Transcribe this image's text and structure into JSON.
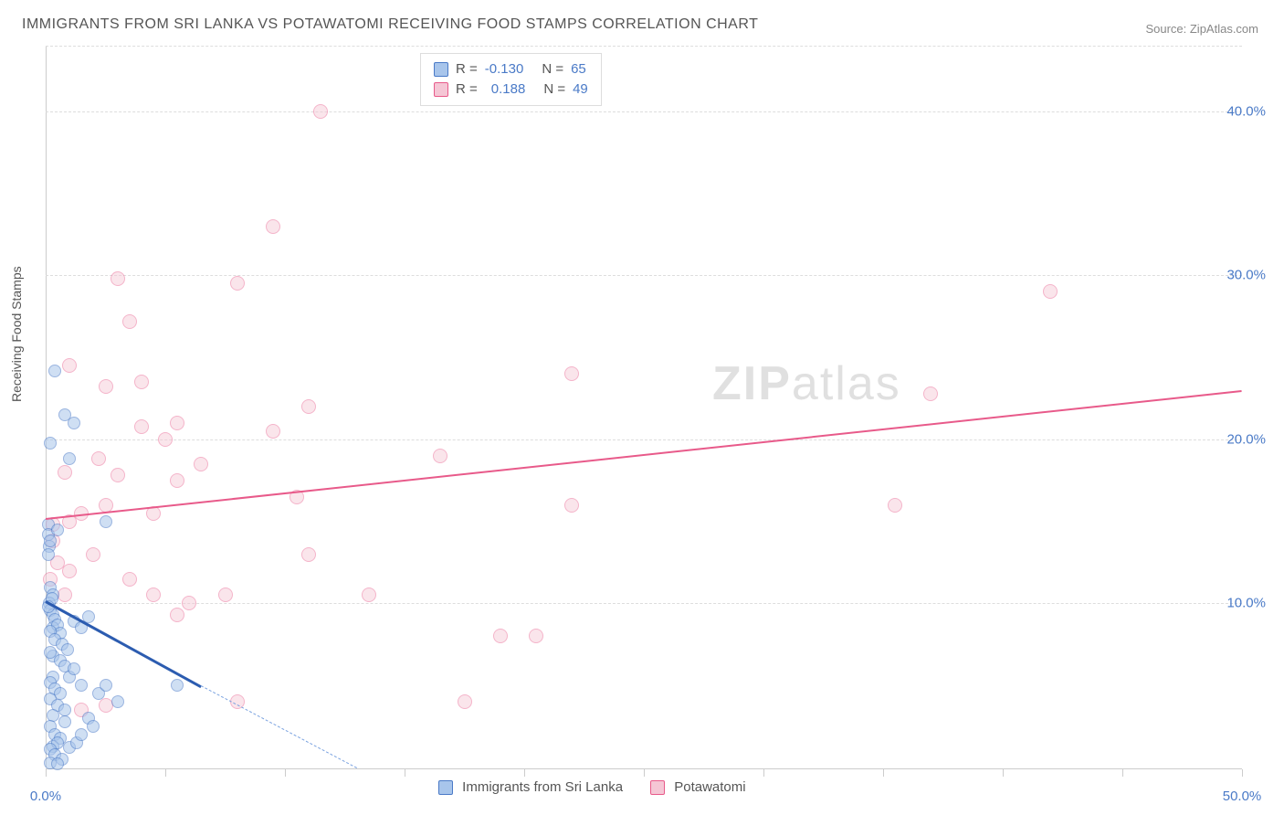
{
  "title": "IMMIGRANTS FROM SRI LANKA VS POTAWATOMI RECEIVING FOOD STAMPS CORRELATION CHART",
  "source_label": "Source: ",
  "source_value": "ZipAtlas.com",
  "watermark": {
    "bold": "ZIP",
    "rest": "atlas"
  },
  "y_axis_label": "Receiving Food Stamps",
  "chart": {
    "type": "scatter",
    "background_color": "#ffffff",
    "grid_color": "#dddddd",
    "axis_color": "#cccccc",
    "tick_label_color": "#4a7ac7",
    "axis_label_color": "#555555",
    "xlim": [
      0,
      50
    ],
    "ylim": [
      0,
      44
    ],
    "xtick_positions": [
      0,
      5,
      10,
      15,
      20,
      25,
      30,
      35,
      40,
      45,
      50
    ],
    "xtick_labels": {
      "0": "0.0%",
      "50": "50.0%"
    },
    "ytick_positions": [
      10,
      20,
      30,
      40
    ],
    "ytick_labels": {
      "10": "10.0%",
      "20": "20.0%",
      "30": "30.0%",
      "40": "40.0%"
    },
    "tick_fontsize": 15,
    "title_fontsize": 16
  },
  "series": {
    "blue": {
      "name": "Immigrants from Sri Lanka",
      "fill": "#a8c5eb",
      "stroke": "#4a7ac7",
      "trend_color": "#2c5cb0",
      "dash_color": "#7ba3e0",
      "marker_size": 14,
      "fill_opacity": 0.55,
      "R": "-0.130",
      "N": "65",
      "trend": {
        "x1": 0,
        "y1": 10.2,
        "x2": 6.5,
        "y2": 5.0
      },
      "trend_dash": {
        "x1": 6.5,
        "y1": 5.0,
        "x2": 13,
        "y2": 0
      },
      "points": [
        [
          0.1,
          14.8
        ],
        [
          0.4,
          24.2
        ],
        [
          0.1,
          14.2
        ],
        [
          0.15,
          13.5
        ],
        [
          0.1,
          13.0
        ],
        [
          0.8,
          21.5
        ],
        [
          1.2,
          21.0
        ],
        [
          0.2,
          19.8
        ],
        [
          1.0,
          18.8
        ],
        [
          0.2,
          13.8
        ],
        [
          0.5,
          14.5
        ],
        [
          2.5,
          15.0
        ],
        [
          3.0,
          4.0
        ],
        [
          5.5,
          5.0
        ],
        [
          0.2,
          11.0
        ],
        [
          0.3,
          10.5
        ],
        [
          0.15,
          10.0
        ],
        [
          0.25,
          10.3
        ],
        [
          0.2,
          9.6
        ],
        [
          0.3,
          9.3
        ],
        [
          0.1,
          9.8
        ],
        [
          0.4,
          9.0
        ],
        [
          0.3,
          8.5
        ],
        [
          0.5,
          8.7
        ],
        [
          0.6,
          8.2
        ],
        [
          0.2,
          8.3
        ],
        [
          0.4,
          7.8
        ],
        [
          0.7,
          7.5
        ],
        [
          0.9,
          7.2
        ],
        [
          0.3,
          6.8
        ],
        [
          0.2,
          7.0
        ],
        [
          0.6,
          6.5
        ],
        [
          0.8,
          6.2
        ],
        [
          1.2,
          8.9
        ],
        [
          1.5,
          8.5
        ],
        [
          1.8,
          9.2
        ],
        [
          0.3,
          5.5
        ],
        [
          0.2,
          5.2
        ],
        [
          0.4,
          4.8
        ],
        [
          0.6,
          4.5
        ],
        [
          0.2,
          4.2
        ],
        [
          0.5,
          3.8
        ],
        [
          0.3,
          3.2
        ],
        [
          0.8,
          2.8
        ],
        [
          0.2,
          2.5
        ],
        [
          0.4,
          2.0
        ],
        [
          0.6,
          1.8
        ],
        [
          0.3,
          1.3
        ],
        [
          0.5,
          1.5
        ],
        [
          0.2,
          1.1
        ],
        [
          0.4,
          0.8
        ],
        [
          0.7,
          0.5
        ],
        [
          1.0,
          1.2
        ],
        [
          1.3,
          1.5
        ],
        [
          1.5,
          2.0
        ],
        [
          1.8,
          3.0
        ],
        [
          2.0,
          2.5
        ],
        [
          2.2,
          4.5
        ],
        [
          2.5,
          5.0
        ],
        [
          1.0,
          5.5
        ],
        [
          1.2,
          6.0
        ],
        [
          1.5,
          5.0
        ],
        [
          0.8,
          3.5
        ],
        [
          0.2,
          0.3
        ],
        [
          0.5,
          0.2
        ]
      ]
    },
    "pink": {
      "name": "Potawatomi",
      "fill": "#f5c6d5",
      "stroke": "#e85a8a",
      "trend_color": "#e85a8a",
      "marker_size": 16,
      "fill_opacity": 0.45,
      "R": "0.188",
      "N": "49",
      "trend": {
        "x1": 0,
        "y1": 15.2,
        "x2": 50,
        "y2": 23.0
      },
      "points": [
        [
          11.5,
          40.0
        ],
        [
          3.0,
          29.8
        ],
        [
          8.0,
          29.5
        ],
        [
          3.5,
          27.2
        ],
        [
          1.0,
          24.5
        ],
        [
          9.5,
          33.0
        ],
        [
          22.0,
          24.0
        ],
        [
          37.0,
          22.8
        ],
        [
          42.0,
          29.0
        ],
        [
          35.5,
          16.0
        ],
        [
          4.0,
          23.5
        ],
        [
          2.5,
          23.2
        ],
        [
          11.0,
          22.0
        ],
        [
          9.5,
          20.5
        ],
        [
          5.5,
          21.0
        ],
        [
          4.0,
          20.8
        ],
        [
          5.0,
          20.0
        ],
        [
          6.5,
          18.5
        ],
        [
          5.5,
          17.5
        ],
        [
          3.0,
          17.8
        ],
        [
          2.2,
          18.8
        ],
        [
          0.8,
          18.0
        ],
        [
          16.5,
          19.0
        ],
        [
          22.0,
          16.0
        ],
        [
          20.5,
          8.0
        ],
        [
          0.3,
          14.8
        ],
        [
          1.5,
          15.5
        ],
        [
          2.5,
          16.0
        ],
        [
          1.0,
          15.0
        ],
        [
          10.5,
          16.5
        ],
        [
          11.0,
          13.0
        ],
        [
          2.0,
          13.0
        ],
        [
          1.0,
          12.0
        ],
        [
          0.8,
          10.5
        ],
        [
          3.5,
          11.5
        ],
        [
          4.5,
          10.5
        ],
        [
          6.0,
          10.0
        ],
        [
          5.5,
          9.3
        ],
        [
          7.5,
          10.5
        ],
        [
          13.5,
          10.5
        ],
        [
          17.5,
          4.0
        ],
        [
          8.0,
          4.0
        ],
        [
          19.0,
          8.0
        ],
        [
          1.5,
          3.5
        ],
        [
          2.5,
          3.8
        ],
        [
          0.3,
          13.8
        ],
        [
          0.5,
          12.5
        ],
        [
          0.2,
          11.5
        ],
        [
          4.5,
          15.5
        ]
      ]
    }
  },
  "legend": {
    "R_label": "R =",
    "N_label": "N ="
  }
}
